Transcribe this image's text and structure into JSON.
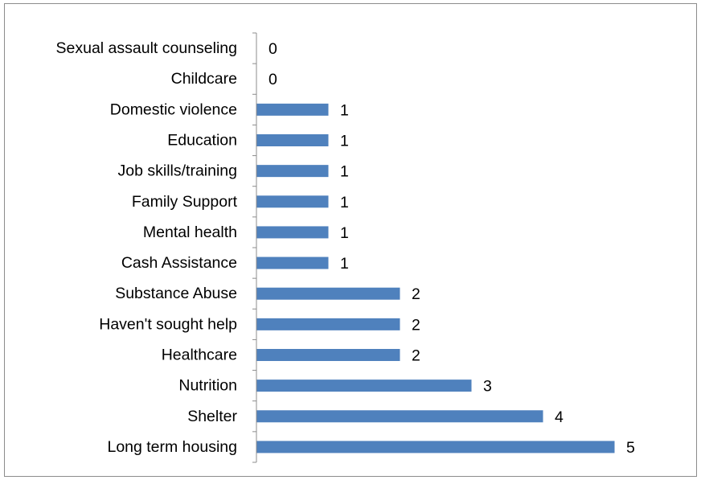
{
  "chart_data": {
    "type": "bar",
    "orientation": "horizontal",
    "categories": [
      "Sexual assault counseling",
      "Childcare",
      "Domestic violence",
      "Education",
      "Job skills/training",
      "Family Support",
      "Mental health",
      "Cash Assistance",
      "Substance Abuse",
      "Haven't sought help",
      "Healthcare",
      "Nutrition",
      "Shelter",
      "Long term housing"
    ],
    "values": [
      0,
      0,
      1,
      1,
      1,
      1,
      1,
      1,
      2,
      2,
      2,
      3,
      4,
      5
    ],
    "value_labels": [
      "0",
      "0",
      "1",
      "1",
      "1",
      "1",
      "1",
      "1",
      "2",
      "2",
      "2",
      "3",
      "4",
      "5"
    ],
    "title": "",
    "xlabel": "",
    "ylabel": "",
    "xlim": [
      0,
      5
    ],
    "bar_color": "#4f81bd",
    "grid": false,
    "legend": "none"
  }
}
